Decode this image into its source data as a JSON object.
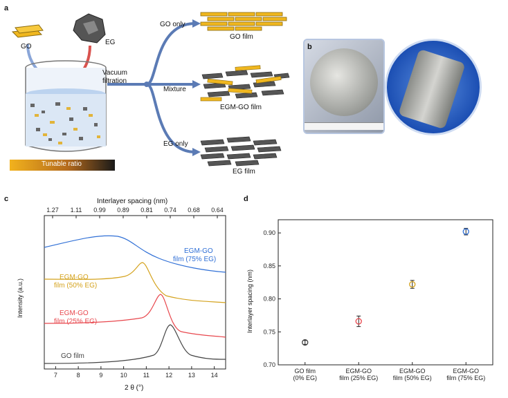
{
  "panel_a": {
    "letter": "a",
    "go_label": "GO",
    "eg_label": "EG",
    "vacuum_label": "Vacuum\nfiltration",
    "branch_go": "GO only",
    "branch_mixture": "Mixture",
    "branch_eg": "EG only",
    "film_go": "GO film",
    "film_egmgo": "EGM-GO film",
    "film_eg": "EG film",
    "tunable_ratio": "Tunable ratio",
    "colors": {
      "go": "#f0b71f",
      "eg": "#555555",
      "arrow": "#5b7bb5",
      "red_arrow": "#d9534f"
    }
  },
  "panel_b": {
    "letter": "b"
  },
  "panel_c": {
    "letter": "c",
    "top_axis_title": "Interlayer spacing (nm)",
    "top_ticks": [
      "1.27",
      "1.11",
      "0.99",
      "0.89",
      "0.81",
      "0.74",
      "0.68",
      "0.64"
    ],
    "bottom_ticks": [
      "7",
      "8",
      "9",
      "10",
      "11",
      "12",
      "13",
      "14"
    ],
    "xlabel": "2 θ (°)",
    "ylabel": "Intensity (a.u.)",
    "curves": [
      {
        "line1": "EGM-GO",
        "line2": "film (75% EG)",
        "color": "#2f6fd6"
      },
      {
        "line1": "EGM-GO",
        "line2": "film (50% EG)",
        "color": "#d4a21c"
      },
      {
        "line1": "EGM-GO",
        "line2": "film (25% EG)",
        "color": "#e8474d"
      },
      {
        "line1": "GO film",
        "line2": "",
        "color": "#444444"
      }
    ]
  },
  "panel_d": {
    "letter": "d",
    "ylabel": "Interlayer spacing (nm)",
    "chart_data": {
      "type": "scatter",
      "categories": [
        "GO film\n(0% EG)",
        "EGM-GO\nfilm (25% EG)",
        "EGM-GO\nfilm (50% EG)",
        "EGM-GO\nfilm (75% EG)"
      ],
      "values": [
        0.734,
        0.766,
        0.822,
        0.902
      ],
      "errors": [
        0.003,
        0.008,
        0.006,
        0.005
      ],
      "colors": [
        "#444444",
        "#e8474d",
        "#d4a21c",
        "#2f6fd6"
      ],
      "ylim": [
        0.7,
        0.92
      ],
      "yticks": [
        "0.70",
        "0.75",
        "0.80",
        "0.85",
        "0.90"
      ],
      "ylabel": "Interlayer spacing (nm)"
    }
  }
}
